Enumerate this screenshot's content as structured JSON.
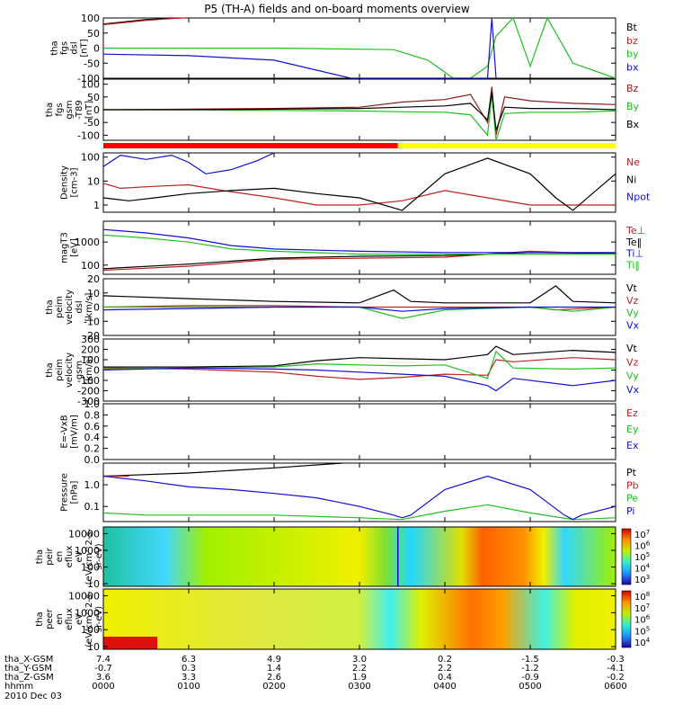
{
  "title": "P5 (TH-A) fields and on-board moments overview",
  "date_label": "2010 Dec 03",
  "chart_data": [
    {
      "type": "line",
      "panel": "fgs_dsl",
      "ylabel": [
        "tha",
        "fgs",
        "dsl",
        "[nT]"
      ],
      "ylim": [
        -100,
        100
      ],
      "yticks": [
        "100",
        "50",
        "0",
        "-50",
        "-100"
      ],
      "grid": false,
      "legend": "right",
      "series": [
        {
          "name": "Bt",
          "color": "#000000",
          "x": [
            0,
            0.5,
            0.9
          ],
          "y": [
            80,
            95,
            100
          ]
        },
        {
          "name": "bz",
          "color": "#c02020",
          "x": [
            0,
            0.5,
            0.8,
            0.95
          ],
          "y": [
            78,
            92,
            98,
            100
          ]
        },
        {
          "name": "by",
          "color": "#20c020",
          "x": [
            0,
            2.0,
            3.4,
            3.8,
            4.1,
            4.3,
            4.5,
            4.6,
            4.8,
            5.0,
            5.2,
            5.5,
            6.0
          ],
          "y": [
            0,
            0,
            -5,
            -40,
            -100,
            -100,
            -60,
            40,
            100,
            -60,
            100,
            -50,
            -100
          ]
        },
        {
          "name": "bx",
          "color": "#1010d0",
          "x": [
            0,
            1.0,
            2.0,
            2.9,
            4.5,
            4.55,
            4.6
          ],
          "y": [
            -20,
            -25,
            -40,
            -100,
            -100,
            100,
            -100
          ]
        }
      ]
    },
    {
      "type": "line",
      "panel": "fgs_gsm",
      "ylabel": [
        "tha",
        "fgs",
        "gsm",
        "-T89",
        "[nT]"
      ],
      "ylim": [
        -120,
        120
      ],
      "yticks": [
        "100",
        "50",
        "0",
        "-50",
        "-100"
      ],
      "grid": false,
      "legend": "right",
      "series": [
        {
          "name": "Bz",
          "color": "#8b1a1a",
          "x": [
            0,
            1,
            2,
            3,
            3.5,
            4,
            4.3,
            4.5,
            4.55,
            4.6,
            4.7,
            5,
            5.5,
            6
          ],
          "y": [
            0,
            2,
            5,
            10,
            30,
            40,
            60,
            -50,
            90,
            -100,
            50,
            35,
            25,
            20
          ]
        },
        {
          "name": "By",
          "color": "#20c020",
          "x": [
            0,
            1,
            2,
            3,
            3.5,
            4,
            4.3,
            4.5,
            4.55,
            4.6,
            4.7,
            5,
            5.5,
            6
          ],
          "y": [
            0,
            0,
            -3,
            -5,
            -8,
            -10,
            -20,
            -100,
            60,
            -120,
            -15,
            -10,
            -10,
            -5
          ]
        },
        {
          "name": "Bx",
          "color": "#000000",
          "x": [
            0,
            1,
            2,
            3,
            3.5,
            4,
            4.3,
            4.5,
            4.55,
            4.6,
            4.7,
            5,
            5.5,
            6
          ],
          "y": [
            0,
            0,
            2,
            5,
            10,
            15,
            25,
            -40,
            70,
            -80,
            10,
            5,
            5,
            0
          ]
        }
      ]
    },
    {
      "type": "line",
      "panel": "density",
      "ylabel": [
        "Density",
        "[cm-3]"
      ],
      "scale": "log",
      "ylim": [
        0.5,
        150
      ],
      "yticks": [
        "100",
        "10",
        "1"
      ],
      "grid": false,
      "legend": "right",
      "series": [
        {
          "name": "Ne",
          "color": "#c02020",
          "x": [
            0,
            0.2,
            0.6,
            1.0,
            1.4,
            2.0,
            2.5,
            3.0,
            3.5,
            4.0,
            4.5,
            5.0,
            5.5,
            6.0
          ],
          "y": [
            8,
            5,
            6,
            7,
            4,
            2,
            1,
            1,
            1.5,
            4,
            2,
            1,
            1,
            1
          ]
        },
        {
          "name": "Ni",
          "color": "#000000",
          "x": [
            0,
            0.3,
            0.6,
            1.0,
            1.5,
            2.0,
            2.5,
            3.0,
            3.5,
            4.0,
            4.5,
            5.0,
            5.3,
            5.5,
            5.8,
            6.0
          ],
          "y": [
            2,
            1.5,
            2,
            3,
            4,
            5,
            3,
            2,
            0.6,
            20,
            90,
            20,
            2,
            0.6,
            5,
            20
          ]
        },
        {
          "name": "Npot",
          "color": "#1010d0",
          "x": [
            0,
            0.2,
            0.5,
            0.8,
            1.0,
            1.2,
            1.5,
            1.8,
            2.0
          ],
          "y": [
            40,
            120,
            80,
            120,
            60,
            20,
            30,
            70,
            150
          ]
        }
      ]
    },
    {
      "type": "line",
      "panel": "temperature",
      "ylabel": [
        "magT3",
        "[eV]"
      ],
      "scale": "log",
      "ylim": [
        40,
        8000
      ],
      "yticks": [
        "1000",
        "100"
      ],
      "grid": false,
      "legend": "right",
      "series": [
        {
          "name": "Te⊥",
          "color": "#c02020",
          "x": [
            0,
            1,
            2,
            3,
            4,
            5,
            6
          ],
          "y": [
            60,
            90,
            180,
            200,
            220,
            400,
            300
          ]
        },
        {
          "name": "Te‖",
          "color": "#000000",
          "x": [
            0,
            1,
            2,
            3,
            4,
            5,
            6
          ],
          "y": [
            70,
            110,
            200,
            240,
            260,
            350,
            320
          ]
        },
        {
          "name": "Ti⊥",
          "color": "#1010d0",
          "x": [
            0,
            0.5,
            1,
            1.5,
            2,
            3,
            4,
            5,
            6
          ],
          "y": [
            3500,
            2500,
            1500,
            700,
            500,
            400,
            350,
            350,
            350
          ]
        },
        {
          "name": "Ti‖",
          "color": "#20c020",
          "x": [
            0,
            0.5,
            1,
            1.5,
            2,
            3,
            4,
            5,
            6
          ],
          "y": [
            2000,
            1500,
            1000,
            500,
            400,
            300,
            300,
            300,
            300
          ]
        }
      ]
    },
    {
      "type": "line",
      "panel": "velocity_dsl",
      "ylabel": [
        "tha",
        "peim",
        "velocity",
        "dsl",
        "[km/s]"
      ],
      "ylim": [
        -20,
        20
      ],
      "yticks": [
        "20",
        "10",
        "0",
        "-10",
        "-20"
      ],
      "grid": false,
      "legend": "right",
      "series": [
        {
          "name": "Vt",
          "color": "#000000",
          "x": [
            0,
            1,
            2,
            3,
            3.4,
            3.6,
            4,
            5,
            5.3,
            5.5,
            6
          ],
          "y": [
            8,
            6,
            4,
            3,
            12,
            4,
            3,
            3,
            15,
            4,
            3
          ]
        },
        {
          "name": "Vz",
          "color": "#c02020",
          "x": [
            0,
            1,
            2,
            3,
            4,
            5,
            5.3,
            6
          ],
          "y": [
            0,
            1,
            1,
            0,
            0,
            0,
            -2,
            0
          ]
        },
        {
          "name": "Vy",
          "color": "#20c020",
          "x": [
            0,
            1,
            2,
            3,
            3.5,
            4,
            5,
            5.5,
            6
          ],
          "y": [
            0,
            0,
            0,
            0,
            -8,
            -2,
            0,
            -3,
            0
          ]
        },
        {
          "name": "Vx",
          "color": "#1010d0",
          "x": [
            0,
            1,
            2,
            3,
            3.5,
            4,
            5,
            6
          ],
          "y": [
            -2,
            -1,
            0,
            0,
            -3,
            -1,
            0,
            0
          ]
        }
      ]
    },
    {
      "type": "line",
      "panel": "velocity_gsm",
      "ylabel": [
        "tha",
        "peim",
        "velocity",
        "gsm",
        "[km/s]"
      ],
      "ylim": [
        -300,
        300
      ],
      "yticks": [
        "300",
        "200",
        "100",
        "0",
        "-100",
        "-200",
        "-300"
      ],
      "grid": false,
      "legend": "right",
      "series": [
        {
          "name": "Vt",
          "color": "#000000",
          "x": [
            0,
            1,
            2,
            2.5,
            3,
            3.5,
            4,
            4.5,
            4.6,
            4.8,
            5.5,
            6
          ],
          "y": [
            30,
            30,
            40,
            90,
            120,
            110,
            100,
            150,
            230,
            150,
            190,
            170
          ]
        },
        {
          "name": "Vz",
          "color": "#c02020",
          "x": [
            0,
            1,
            2,
            2.5,
            3,
            3.5,
            4,
            4.5,
            4.6,
            4.8,
            5.5,
            6
          ],
          "y": [
            20,
            10,
            -20,
            -60,
            -90,
            -70,
            -40,
            -50,
            100,
            80,
            120,
            100
          ]
        },
        {
          "name": "Vy",
          "color": "#20c020",
          "x": [
            0,
            1,
            2,
            2.5,
            3,
            3.5,
            4,
            4.5,
            4.6,
            4.8,
            5.5,
            6
          ],
          "y": [
            10,
            20,
            30,
            60,
            50,
            40,
            50,
            -80,
            180,
            20,
            10,
            20
          ]
        },
        {
          "name": "Vx",
          "color": "#1010d0",
          "x": [
            0,
            1,
            2,
            2.5,
            3,
            3.5,
            4,
            4.5,
            4.6,
            4.8,
            5.5,
            6
          ],
          "y": [
            0,
            20,
            10,
            0,
            -20,
            -40,
            -60,
            -150,
            -200,
            -80,
            -150,
            -100
          ]
        }
      ]
    },
    {
      "type": "line",
      "panel": "efield",
      "ylabel": [
        "E=-VxB",
        "[mV/m]"
      ],
      "ylim": [
        0,
        1
      ],
      "yticks": [
        "1.0",
        "0.8",
        "0.6",
        "0.4",
        "0.2",
        "0.0"
      ],
      "grid": false,
      "legend": "right",
      "series": [
        {
          "name": "Ez",
          "color": "#c02020",
          "x": [],
          "y": []
        },
        {
          "name": "Ey",
          "color": "#20c020",
          "x": [],
          "y": []
        },
        {
          "name": "Ex",
          "color": "#1010d0",
          "x": [],
          "y": []
        }
      ]
    },
    {
      "type": "line",
      "panel": "pressure",
      "ylabel": [
        "Pressure",
        "[nPa]"
      ],
      "scale": "log",
      "ylim": [
        0.02,
        10
      ],
      "yticks": [
        "1.0",
        "0.1"
      ],
      "grid": false,
      "legend": "right",
      "series": [
        {
          "name": "Pt",
          "color": "#000000",
          "x": [
            0,
            1,
            2,
            2.8
          ],
          "y": [
            2.5,
            3.5,
            6,
            10
          ]
        },
        {
          "name": "Pb",
          "color": "#c02020",
          "x": [
            0,
            0.3
          ],
          "y": [
            2.5,
            2.5
          ]
        },
        {
          "name": "Pe",
          "color": "#20c020",
          "x": [
            0,
            0.5,
            1,
            2,
            3,
            3.5,
            4,
            4.5,
            5,
            5.5,
            6
          ],
          "y": [
            0.05,
            0.04,
            0.04,
            0.04,
            0.03,
            0.025,
            0.06,
            0.12,
            0.05,
            0.025,
            0.03
          ]
        },
        {
          "name": "Pi",
          "color": "#1010d0",
          "x": [
            0,
            0.5,
            1,
            1.5,
            2,
            2.5,
            3,
            3.4,
            3.5,
            3.6,
            4,
            4.5,
            5,
            5.4,
            5.5,
            5.6,
            6
          ],
          "y": [
            2.5,
            1.5,
            0.8,
            0.6,
            0.4,
            0.25,
            0.1,
            0.04,
            0.03,
            0.04,
            0.6,
            2.5,
            0.6,
            0.04,
            0.025,
            0.04,
            0.1
          ]
        }
      ]
    },
    {
      "type": "heatmap",
      "panel": "peir_eflux",
      "ylabel": [
        "tha",
        "peir",
        "en",
        "eflux",
        "eV",
        "(eV/cm^2-s-",
        "sr-eV)"
      ],
      "scale": "log",
      "ylim": [
        7,
        25000
      ],
      "yticks": [
        "10000",
        "1000",
        "100",
        "10"
      ],
      "colorbar": [
        "10^7",
        "10^6",
        "10^5",
        "10^4",
        "10^3"
      ]
    },
    {
      "type": "heatmap",
      "panel": "peer_eflux",
      "ylabel": [
        "tha",
        "peer",
        "en",
        "eflux",
        "eV",
        "(eV/cm^2-s-",
        "sr-eV)"
      ],
      "scale": "log",
      "ylim": [
        7,
        25000
      ],
      "yticks": [
        "10000",
        "1000",
        "100",
        "10"
      ],
      "colorbar": [
        "10^8",
        "10^7",
        "10^6",
        "10^5",
        "10^4"
      ]
    }
  ],
  "xaxis": {
    "rows": [
      {
        "label": "tha_X-GSM",
        "values": [
          "7.4",
          "6.3",
          "4.9",
          "3.0",
          "0.2",
          "-1.5",
          "-0.3"
        ]
      },
      {
        "label": "tha_Y-GSM",
        "values": [
          "-0.7",
          "0.3",
          "1.4",
          "2.2",
          "2.2",
          "-1.2",
          "-4.1"
        ]
      },
      {
        "label": "tha_Z-GSM",
        "values": [
          "3.6",
          "3.3",
          "2.6",
          "1.9",
          "0.4",
          "-0.9",
          "-0.2"
        ]
      },
      {
        "label": "hhmm",
        "values": [
          "0000",
          "0100",
          "0200",
          "0300",
          "0400",
          "0500",
          "0600"
        ]
      }
    ]
  },
  "mode_bar": {
    "colors": [
      "#ff0000",
      "#ffff00"
    ],
    "switch_hour": 3.45
  }
}
